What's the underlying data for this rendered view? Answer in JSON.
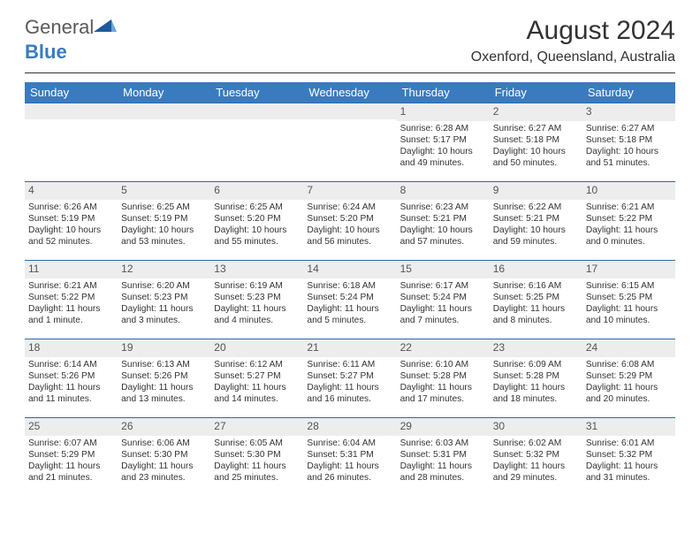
{
  "brand": {
    "word1": "General",
    "word2": "Blue"
  },
  "title": "August 2024",
  "location": "Oxenford, Queensland, Australia",
  "colors": {
    "header_bg": "#3a7bbf",
    "header_text": "#ffffff",
    "daynum_bg": "#ededed",
    "rule": "#2f6aa8",
    "text": "#333333"
  },
  "dow": [
    "Sunday",
    "Monday",
    "Tuesday",
    "Wednesday",
    "Thursday",
    "Friday",
    "Saturday"
  ],
  "weeks": [
    [
      null,
      null,
      null,
      null,
      {
        "n": "1",
        "sr": "Sunrise: 6:28 AM",
        "ss": "Sunset: 5:17 PM",
        "d1": "Daylight: 10 hours",
        "d2": "and 49 minutes."
      },
      {
        "n": "2",
        "sr": "Sunrise: 6:27 AM",
        "ss": "Sunset: 5:18 PM",
        "d1": "Daylight: 10 hours",
        "d2": "and 50 minutes."
      },
      {
        "n": "3",
        "sr": "Sunrise: 6:27 AM",
        "ss": "Sunset: 5:18 PM",
        "d1": "Daylight: 10 hours",
        "d2": "and 51 minutes."
      }
    ],
    [
      {
        "n": "4",
        "sr": "Sunrise: 6:26 AM",
        "ss": "Sunset: 5:19 PM",
        "d1": "Daylight: 10 hours",
        "d2": "and 52 minutes."
      },
      {
        "n": "5",
        "sr": "Sunrise: 6:25 AM",
        "ss": "Sunset: 5:19 PM",
        "d1": "Daylight: 10 hours",
        "d2": "and 53 minutes."
      },
      {
        "n": "6",
        "sr": "Sunrise: 6:25 AM",
        "ss": "Sunset: 5:20 PM",
        "d1": "Daylight: 10 hours",
        "d2": "and 55 minutes."
      },
      {
        "n": "7",
        "sr": "Sunrise: 6:24 AM",
        "ss": "Sunset: 5:20 PM",
        "d1": "Daylight: 10 hours",
        "d2": "and 56 minutes."
      },
      {
        "n": "8",
        "sr": "Sunrise: 6:23 AM",
        "ss": "Sunset: 5:21 PM",
        "d1": "Daylight: 10 hours",
        "d2": "and 57 minutes."
      },
      {
        "n": "9",
        "sr": "Sunrise: 6:22 AM",
        "ss": "Sunset: 5:21 PM",
        "d1": "Daylight: 10 hours",
        "d2": "and 59 minutes."
      },
      {
        "n": "10",
        "sr": "Sunrise: 6:21 AM",
        "ss": "Sunset: 5:22 PM",
        "d1": "Daylight: 11 hours",
        "d2": "and 0 minutes."
      }
    ],
    [
      {
        "n": "11",
        "sr": "Sunrise: 6:21 AM",
        "ss": "Sunset: 5:22 PM",
        "d1": "Daylight: 11 hours",
        "d2": "and 1 minute."
      },
      {
        "n": "12",
        "sr": "Sunrise: 6:20 AM",
        "ss": "Sunset: 5:23 PM",
        "d1": "Daylight: 11 hours",
        "d2": "and 3 minutes."
      },
      {
        "n": "13",
        "sr": "Sunrise: 6:19 AM",
        "ss": "Sunset: 5:23 PM",
        "d1": "Daylight: 11 hours",
        "d2": "and 4 minutes."
      },
      {
        "n": "14",
        "sr": "Sunrise: 6:18 AM",
        "ss": "Sunset: 5:24 PM",
        "d1": "Daylight: 11 hours",
        "d2": "and 5 minutes."
      },
      {
        "n": "15",
        "sr": "Sunrise: 6:17 AM",
        "ss": "Sunset: 5:24 PM",
        "d1": "Daylight: 11 hours",
        "d2": "and 7 minutes."
      },
      {
        "n": "16",
        "sr": "Sunrise: 6:16 AM",
        "ss": "Sunset: 5:25 PM",
        "d1": "Daylight: 11 hours",
        "d2": "and 8 minutes."
      },
      {
        "n": "17",
        "sr": "Sunrise: 6:15 AM",
        "ss": "Sunset: 5:25 PM",
        "d1": "Daylight: 11 hours",
        "d2": "and 10 minutes."
      }
    ],
    [
      {
        "n": "18",
        "sr": "Sunrise: 6:14 AM",
        "ss": "Sunset: 5:26 PM",
        "d1": "Daylight: 11 hours",
        "d2": "and 11 minutes."
      },
      {
        "n": "19",
        "sr": "Sunrise: 6:13 AM",
        "ss": "Sunset: 5:26 PM",
        "d1": "Daylight: 11 hours",
        "d2": "and 13 minutes."
      },
      {
        "n": "20",
        "sr": "Sunrise: 6:12 AM",
        "ss": "Sunset: 5:27 PM",
        "d1": "Daylight: 11 hours",
        "d2": "and 14 minutes."
      },
      {
        "n": "21",
        "sr": "Sunrise: 6:11 AM",
        "ss": "Sunset: 5:27 PM",
        "d1": "Daylight: 11 hours",
        "d2": "and 16 minutes."
      },
      {
        "n": "22",
        "sr": "Sunrise: 6:10 AM",
        "ss": "Sunset: 5:28 PM",
        "d1": "Daylight: 11 hours",
        "d2": "and 17 minutes."
      },
      {
        "n": "23",
        "sr": "Sunrise: 6:09 AM",
        "ss": "Sunset: 5:28 PM",
        "d1": "Daylight: 11 hours",
        "d2": "and 18 minutes."
      },
      {
        "n": "24",
        "sr": "Sunrise: 6:08 AM",
        "ss": "Sunset: 5:29 PM",
        "d1": "Daylight: 11 hours",
        "d2": "and 20 minutes."
      }
    ],
    [
      {
        "n": "25",
        "sr": "Sunrise: 6:07 AM",
        "ss": "Sunset: 5:29 PM",
        "d1": "Daylight: 11 hours",
        "d2": "and 21 minutes."
      },
      {
        "n": "26",
        "sr": "Sunrise: 6:06 AM",
        "ss": "Sunset: 5:30 PM",
        "d1": "Daylight: 11 hours",
        "d2": "and 23 minutes."
      },
      {
        "n": "27",
        "sr": "Sunrise: 6:05 AM",
        "ss": "Sunset: 5:30 PM",
        "d1": "Daylight: 11 hours",
        "d2": "and 25 minutes."
      },
      {
        "n": "28",
        "sr": "Sunrise: 6:04 AM",
        "ss": "Sunset: 5:31 PM",
        "d1": "Daylight: 11 hours",
        "d2": "and 26 minutes."
      },
      {
        "n": "29",
        "sr": "Sunrise: 6:03 AM",
        "ss": "Sunset: 5:31 PM",
        "d1": "Daylight: 11 hours",
        "d2": "and 28 minutes."
      },
      {
        "n": "30",
        "sr": "Sunrise: 6:02 AM",
        "ss": "Sunset: 5:32 PM",
        "d1": "Daylight: 11 hours",
        "d2": "and 29 minutes."
      },
      {
        "n": "31",
        "sr": "Sunrise: 6:01 AM",
        "ss": "Sunset: 5:32 PM",
        "d1": "Daylight: 11 hours",
        "d2": "and 31 minutes."
      }
    ]
  ]
}
